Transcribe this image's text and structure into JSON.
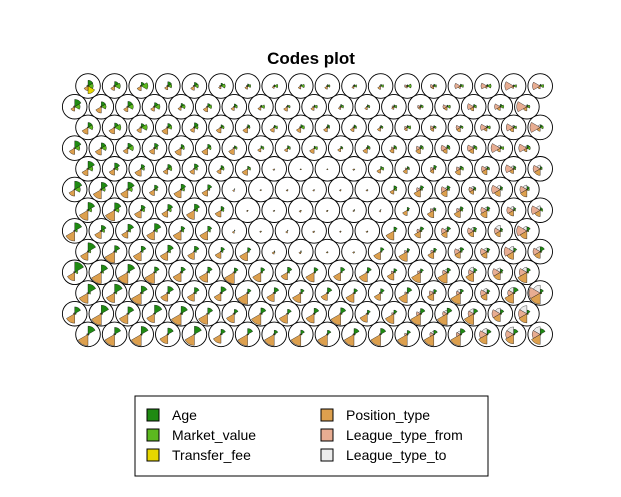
{
  "chart_data": {
    "type": "som-codes-plot",
    "title": "Codes plot",
    "grid": {
      "rows": 13,
      "cols": 18,
      "topology": "hexagonal"
    },
    "segments": [
      "Age",
      "Market_value",
      "Transfer_fee",
      "Position_type",
      "League_type_from",
      "League_type_to"
    ],
    "legend": {
      "placement": "bottom",
      "items": [
        {
          "label": "Age",
          "color": "#1f8a12"
        },
        {
          "label": "Market_value",
          "color": "#5cb81f"
        },
        {
          "label": "Transfer_fee",
          "color": "#e6d600"
        },
        {
          "label": "Position_type",
          "color": "#dda04e"
        },
        {
          "label": "League_type_from",
          "color": "#e8ad92"
        },
        {
          "label": "League_type_to",
          "color": "#ececec"
        }
      ]
    }
  }
}
